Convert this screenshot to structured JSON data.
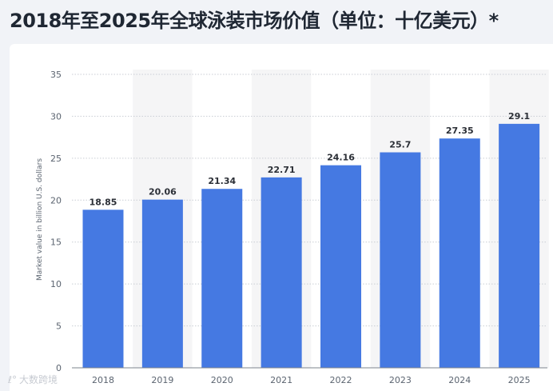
{
  "page": {
    "title": "2018年至2025年全球泳装市场价值（单位：十亿美元）*",
    "watermark_icon": "logo-icon",
    "watermark": "大数跨境"
  },
  "colors": {
    "bar": "#4579e2",
    "band": "#f5f5f6",
    "grid": "#c9cdd4",
    "axis_text": "#5b6470",
    "label_text": "#2b2f36"
  },
  "chart_data": {
    "type": "bar",
    "title": "2018年至2025年全球泳装市场价值（单位：十亿美元）*",
    "xlabel": "",
    "ylabel": "Market value in billion U.S. dollars",
    "categories": [
      "2018",
      "2019",
      "2020",
      "2021",
      "2022",
      "2023",
      "2024",
      "2025"
    ],
    "values": [
      18.85,
      20.06,
      21.34,
      22.71,
      24.16,
      25.7,
      27.35,
      29.1
    ],
    "labels": [
      "18.85",
      "20.06",
      "21.34",
      "22.71",
      "24.16",
      "25.7",
      "27.35",
      "29.1"
    ],
    "ylim": [
      0,
      35
    ],
    "yticks": [
      0,
      5,
      10,
      15,
      20,
      25,
      30,
      35
    ],
    "grid": true,
    "legend": "none"
  }
}
